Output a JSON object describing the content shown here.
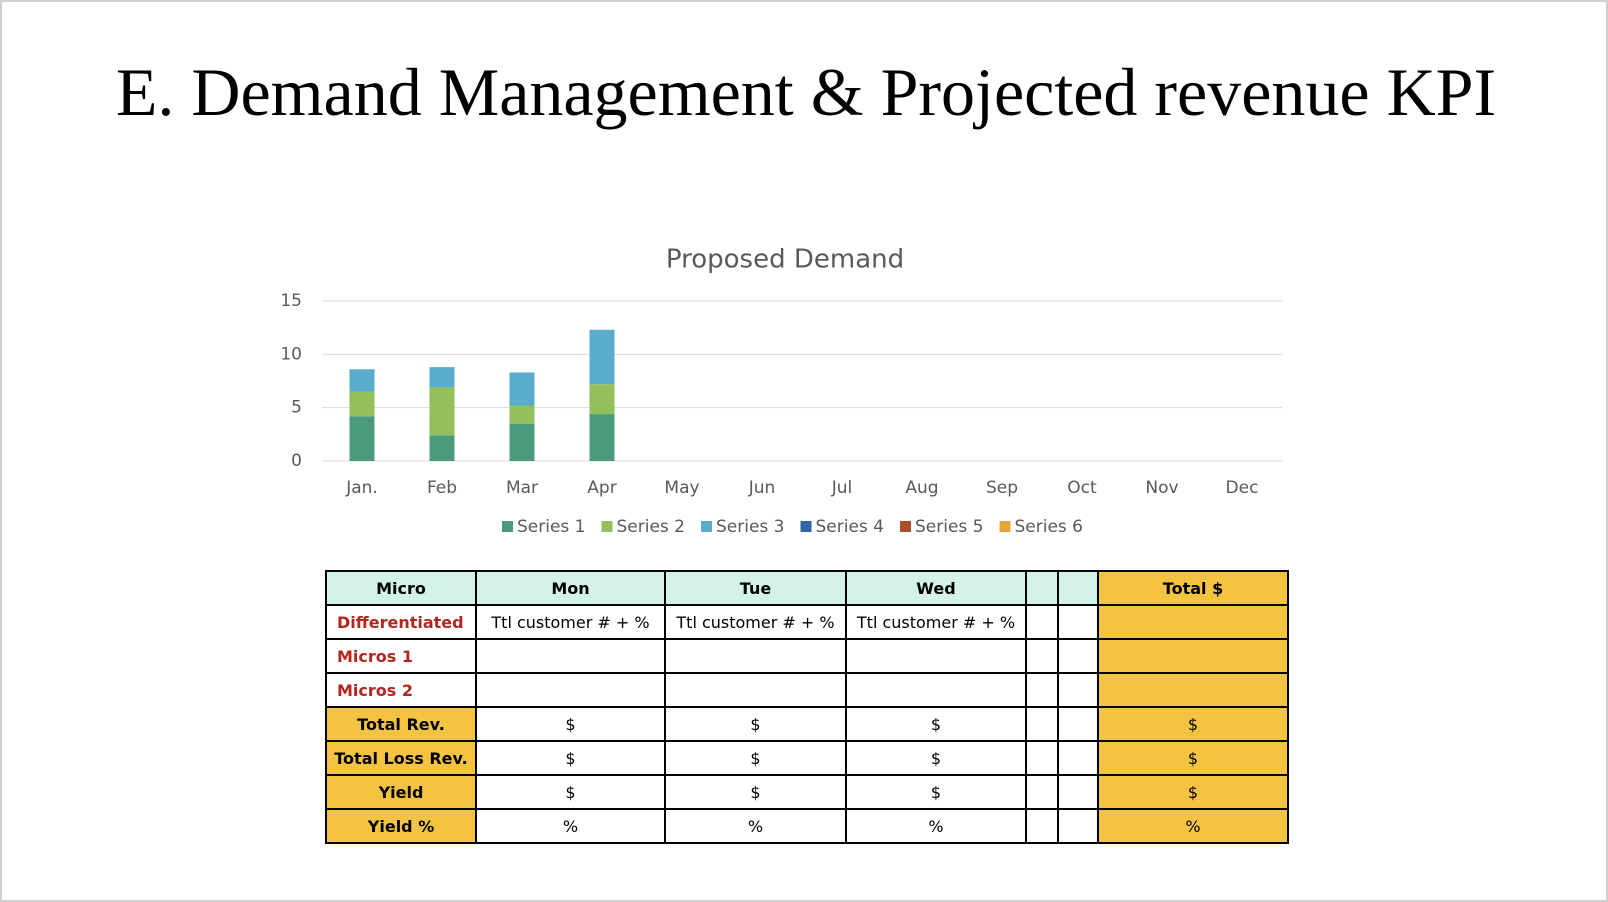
{
  "title": "E. Demand Management & Projected revenue KPI",
  "chart_data": {
    "type": "stacked-bar",
    "title": "Proposed Demand",
    "categories": [
      "Jan.",
      "Feb",
      "Mar",
      "Apr",
      "May",
      "Jun",
      "Jul",
      "Aug",
      "Sep",
      "Oct",
      "Nov",
      "Dec"
    ],
    "series": [
      {
        "name": "Series 1",
        "color": "#4b9a7b",
        "values": [
          4.2,
          2.4,
          3.5,
          4.4,
          null,
          null,
          null,
          null,
          null,
          null,
          null,
          null
        ]
      },
      {
        "name": "Series 2",
        "color": "#93c05b",
        "values": [
          2.3,
          4.5,
          1.7,
          2.8,
          null,
          null,
          null,
          null,
          null,
          null,
          null,
          null
        ]
      },
      {
        "name": "Series 3",
        "color": "#5aaccc",
        "values": [
          2.1,
          1.9,
          3.1,
          5.1,
          null,
          null,
          null,
          null,
          null,
          null,
          null,
          null
        ]
      },
      {
        "name": "Series 4",
        "color": "#2e67a3",
        "values": [
          null,
          null,
          null,
          null,
          null,
          null,
          null,
          null,
          null,
          null,
          null,
          null
        ]
      },
      {
        "name": "Series 5",
        "color": "#ae4e28",
        "values": [
          null,
          null,
          null,
          null,
          null,
          null,
          null,
          null,
          null,
          null,
          null,
          null
        ]
      },
      {
        "name": "Series 6",
        "color": "#e5a53b",
        "values": [
          null,
          null,
          null,
          null,
          null,
          null,
          null,
          null,
          null,
          null,
          null,
          null
        ]
      }
    ],
    "ylim": [
      0,
      15
    ],
    "yticks": [
      0,
      5,
      10,
      15
    ],
    "grid": true,
    "legend": "bottom"
  },
  "table": {
    "header": [
      "Micro",
      "Mon",
      "Tue",
      "Wed",
      "Total $"
    ],
    "rows": [
      {
        "label": "Differentiated",
        "cells": [
          "Ttl customer # + %",
          "Ttl customer # + %",
          "Ttl customer # + %"
        ],
        "total": null
      },
      {
        "label": "Micros 1",
        "cells": [
          null,
          null,
          null
        ],
        "total": null
      },
      {
        "label": "Micros 2",
        "cells": [
          null,
          null,
          null
        ],
        "total": null
      },
      {
        "label": "Total Rev.",
        "cells": [
          "$",
          "$",
          "$"
        ],
        "total": "$"
      },
      {
        "label": "Total Loss Rev.",
        "cells": [
          "$",
          "$",
          "$"
        ],
        "total": "$"
      },
      {
        "label": "Yield",
        "cells": [
          "$",
          "$",
          "$"
        ],
        "total": "$"
      },
      {
        "label": "Yield %",
        "cells": [
          "%",
          "%",
          "%"
        ],
        "total": "%"
      }
    ]
  }
}
